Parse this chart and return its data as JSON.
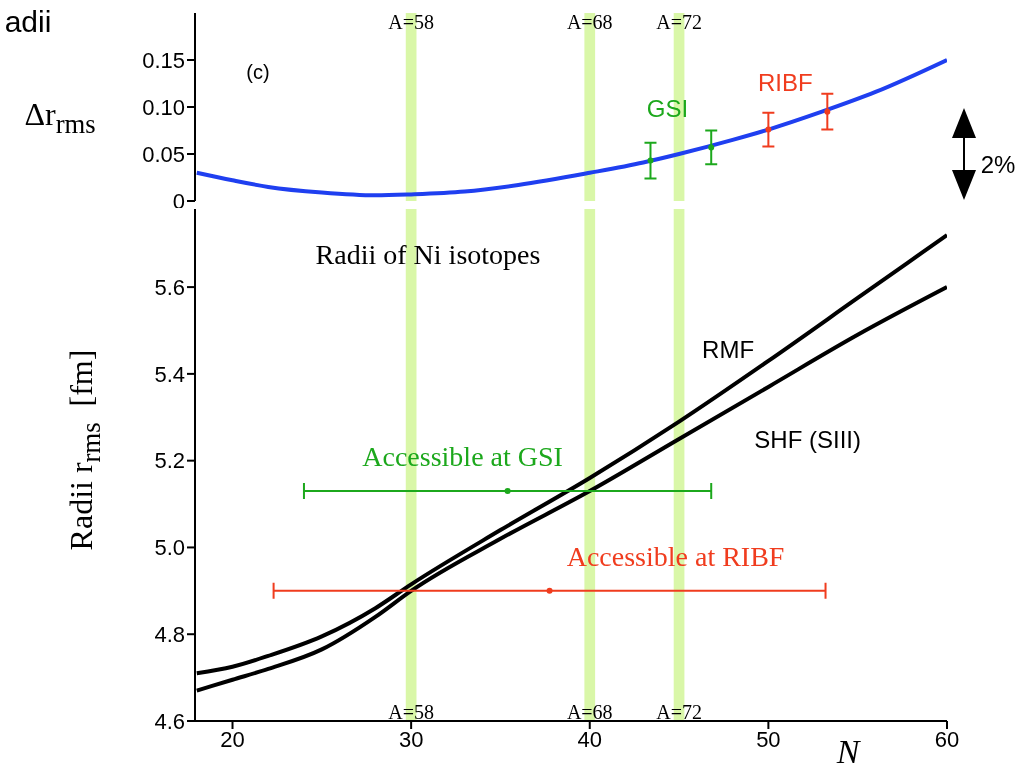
{
  "chart_data": [
    {
      "type": "line",
      "ylabel": "Δr$_{rms}$",
      "annotations": [
        "(c)",
        "2%",
        "adii"
      ],
      "xlim": [
        17.9,
        60
      ],
      "ylim": [
        0,
        0.2
      ],
      "yticks": [
        0,
        0.05,
        {
          "value": 0.1,
          "label": "0.10"
        },
        0.15
      ],
      "tick_labels": "y",
      "marker": "none",
      "grid": false,
      "legend": false,
      "bands": [
        {
          "axis": "x",
          "from": 29.7,
          "to": 30.3,
          "label": "A=58",
          "color": "#d9f7a8"
        },
        {
          "axis": "x",
          "from": 39.7,
          "to": 40.3,
          "label": "A=68",
          "color": "#d9f7a8"
        },
        {
          "axis": "x",
          "from": 44.7,
          "to": 45.3,
          "label": "A=72",
          "color": "#d9f7a8"
        }
      ],
      "series": [
        {
          "color": "#1f3ff0",
          "x": [
            18,
            20,
            22,
            25,
            28,
            30,
            33,
            36,
            40,
            43,
            45,
            48,
            50,
            53,
            56,
            60
          ],
          "values": [
            0.03,
            0.022,
            0.015,
            0.009,
            0.006,
            0.007,
            0.01,
            0.017,
            0.03,
            0.041,
            0.05,
            0.065,
            0.076,
            0.095,
            0.116,
            0.15
          ]
        },
        {
          "name": "GSI",
          "type": "scatter",
          "marker": "circle",
          "color": "#1ca81c",
          "x": [
            43.4,
            46.8
          ],
          "values": [
            0.043,
            0.057
          ],
          "errors": [
            0.019,
            0.018
          ]
        },
        {
          "name": "RIBF",
          "type": "scatter",
          "marker": "circle",
          "color": "#f03c1e",
          "x": [
            50,
            53.3
          ],
          "values": [
            0.076,
            0.095
          ],
          "errors": [
            0.018,
            0.019
          ]
        }
      ]
    },
    {
      "type": "line",
      "xlabel": "N",
      "ylabel": "Radii r$_{rms}$  [fm]",
      "annotations": [
        "Radii of Ni isotopes"
      ],
      "xlim": [
        17.9,
        60
      ],
      "ylim": [
        4.6,
        5.78
      ],
      "xticks": [
        20,
        30,
        40,
        50,
        60
      ],
      "yticks": [
        4.6,
        4.8,
        {
          "value": 5,
          "label": "5.0"
        },
        5.2,
        5.4,
        5.6
      ],
      "marker": "none",
      "grid": false,
      "legend": false,
      "bands": [
        {
          "axis": "x",
          "from": 29.7,
          "to": 30.3,
          "label": "A=58",
          "color": "#d9f7a8"
        },
        {
          "axis": "x",
          "from": 39.7,
          "to": 40.3,
          "label": "A=68",
          "color": "#d9f7a8"
        },
        {
          "axis": "x",
          "from": 44.7,
          "to": 45.3,
          "label": "A=72",
          "color": "#d9f7a8"
        }
      ],
      "series": [
        {
          "name": "RMF",
          "color": "#000000",
          "x": [
            18,
            20,
            22,
            25,
            28,
            30,
            35,
            40,
            45,
            50,
            55,
            60
          ],
          "values": [
            4.71,
            4.725,
            4.75,
            4.795,
            4.86,
            4.915,
            5.04,
            5.16,
            5.29,
            5.43,
            5.575,
            5.72
          ]
        },
        {
          "name": "SHF (SIII)",
          "color": "#000000",
          "x": [
            18,
            20,
            22,
            25,
            28,
            30,
            35,
            40,
            45,
            50,
            55,
            60
          ],
          "values": [
            4.67,
            4.695,
            4.72,
            4.765,
            4.84,
            4.9,
            5.02,
            5.13,
            5.25,
            5.37,
            5.49,
            5.6
          ]
        },
        {
          "name": "Accessible at GSI",
          "type": "scatter",
          "marker": "circle",
          "color": "#1ca81c",
          "x": [
            35.4
          ],
          "values": [
            5.13
          ],
          "xerrors": [
            11.4
          ]
        },
        {
          "name": "Accessible at RIBF",
          "type": "scatter",
          "marker": "circle",
          "color": "#f03c1e",
          "x": [
            37.75
          ],
          "values": [
            4.9
          ],
          "xerrors": [
            15.45
          ]
        }
      ]
    }
  ]
}
